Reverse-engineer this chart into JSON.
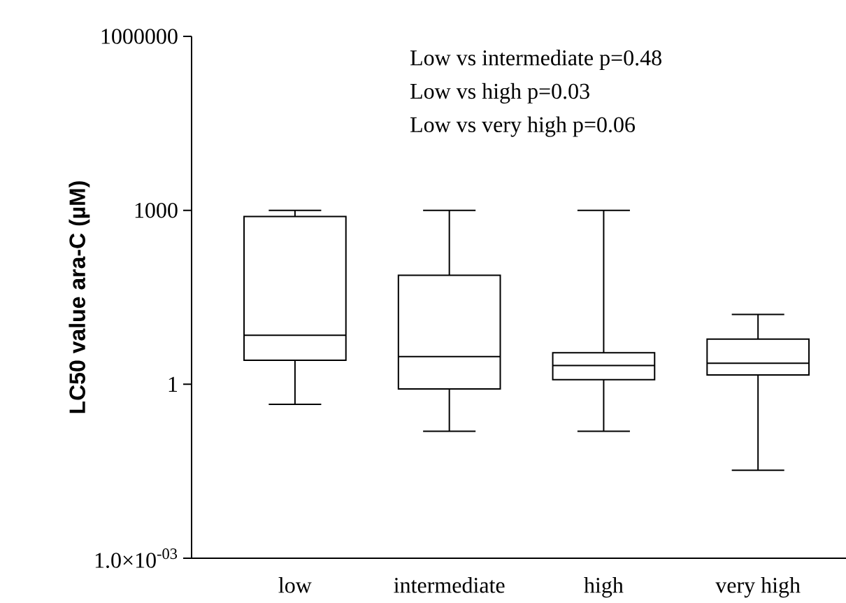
{
  "chart_data": {
    "type": "box",
    "ylabel": "LC50 value ara-C (µM)",
    "categories": [
      "low",
      "intermediate",
      "high",
      "very high"
    ],
    "boxes": [
      {
        "low": 0.45,
        "q1": 2.6,
        "median": 7,
        "q3": 780,
        "high": 1000
      },
      {
        "low": 0.155,
        "q1": 0.83,
        "median": 3,
        "q3": 76,
        "high": 1000
      },
      {
        "low": 0.155,
        "q1": 1.2,
        "median": 2.1,
        "q3": 3.5,
        "high": 1000
      },
      {
        "low": 0.033,
        "q1": 1.45,
        "median": 2.3,
        "q3": 6,
        "high": 16
      }
    ],
    "log": true,
    "ylim": [
      0.001,
      1000000
    ],
    "yticks": [
      {
        "value": 0.001,
        "label": "1.0×10$^{-03}$"
      },
      1,
      1000,
      1000000
    ],
    "annotations": [
      "Low vs intermediate p=0.48",
      "Low vs high p=0.03",
      "Low vs very high p=0.06"
    ]
  }
}
